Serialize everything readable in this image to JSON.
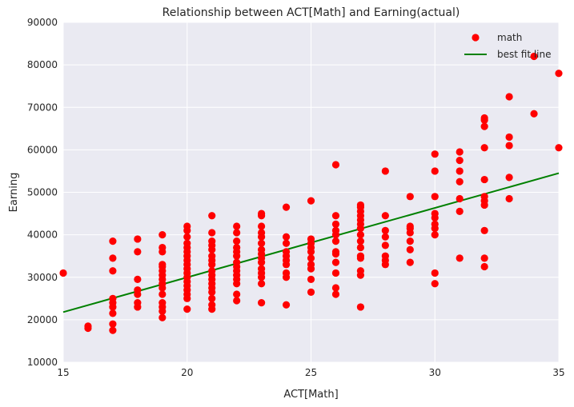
{
  "chart_data": {
    "type": "scatter",
    "title": "Relationship between ACT[Math] and Earning(actual)",
    "xlabel": "ACT[Math]",
    "ylabel": "Earning",
    "xlim": [
      15,
      35
    ],
    "ylim": [
      10000,
      90000
    ],
    "xticks": [
      15,
      20,
      25,
      30,
      35
    ],
    "yticks": [
      10000,
      20000,
      30000,
      40000,
      50000,
      60000,
      70000,
      80000,
      90000
    ],
    "grid": true,
    "legend_position": "top-right",
    "colors": {
      "points": "#ff0000",
      "line": "#008000",
      "background": "#eaeaf2",
      "grid": "#ffffff"
    },
    "series": [
      {
        "name": "math",
        "kind": "scatter",
        "points": [
          [
            15,
            31000
          ],
          [
            16,
            18000
          ],
          [
            16,
            18500
          ],
          [
            17,
            17500
          ],
          [
            17,
            19000
          ],
          [
            17,
            21500
          ],
          [
            17,
            23000
          ],
          [
            17,
            24000
          ],
          [
            17,
            25000
          ],
          [
            17,
            31500
          ],
          [
            17,
            34500
          ],
          [
            17,
            38500
          ],
          [
            18,
            23000
          ],
          [
            18,
            24000
          ],
          [
            18,
            26000
          ],
          [
            18,
            27000
          ],
          [
            18,
            29500
          ],
          [
            18,
            36000
          ],
          [
            18,
            39000
          ],
          [
            19,
            20500
          ],
          [
            19,
            22000
          ],
          [
            19,
            23000
          ],
          [
            19,
            24000
          ],
          [
            19,
            26000
          ],
          [
            19,
            27500
          ],
          [
            19,
            28500
          ],
          [
            19,
            29500
          ],
          [
            19,
            30500
          ],
          [
            19,
            31500
          ],
          [
            19,
            32500
          ],
          [
            19,
            33000
          ],
          [
            19,
            36000
          ],
          [
            19,
            37000
          ],
          [
            19,
            40000
          ],
          [
            20,
            22500
          ],
          [
            20,
            25000
          ],
          [
            20,
            26000
          ],
          [
            20,
            27000
          ],
          [
            20,
            28000
          ],
          [
            20,
            29000
          ],
          [
            20,
            30000
          ],
          [
            20,
            31000
          ],
          [
            20,
            32000
          ],
          [
            20,
            33000
          ],
          [
            20,
            34000
          ],
          [
            20,
            35000
          ],
          [
            20,
            36000
          ],
          [
            20,
            37000
          ],
          [
            20,
            38000
          ],
          [
            20,
            39500
          ],
          [
            20,
            41000
          ],
          [
            20,
            42000
          ],
          [
            21,
            22500
          ],
          [
            21,
            23500
          ],
          [
            21,
            25000
          ],
          [
            21,
            26500
          ],
          [
            21,
            27500
          ],
          [
            21,
            28500
          ],
          [
            21,
            29500
          ],
          [
            21,
            30500
          ],
          [
            21,
            31500
          ],
          [
            21,
            33000
          ],
          [
            21,
            34000
          ],
          [
            21,
            35000
          ],
          [
            21,
            36500
          ],
          [
            21,
            37500
          ],
          [
            21,
            38500
          ],
          [
            21,
            40500
          ],
          [
            21,
            44500
          ],
          [
            22,
            24500
          ],
          [
            22,
            26000
          ],
          [
            22,
            28500
          ],
          [
            22,
            29500
          ],
          [
            22,
            30500
          ],
          [
            22,
            31500
          ],
          [
            22,
            32500
          ],
          [
            22,
            33500
          ],
          [
            22,
            35000
          ],
          [
            22,
            36000
          ],
          [
            22,
            37000
          ],
          [
            22,
            38500
          ],
          [
            22,
            40500
          ],
          [
            22,
            42000
          ],
          [
            23,
            24000
          ],
          [
            23,
            28500
          ],
          [
            23,
            30000
          ],
          [
            23,
            31000
          ],
          [
            23,
            32000
          ],
          [
            23,
            33500
          ],
          [
            23,
            34500
          ],
          [
            23,
            35500
          ],
          [
            23,
            36500
          ],
          [
            23,
            38000
          ],
          [
            23,
            39500
          ],
          [
            23,
            40500
          ],
          [
            23,
            42000
          ],
          [
            23,
            44500
          ],
          [
            23,
            45000
          ],
          [
            24,
            23500
          ],
          [
            24,
            30000
          ],
          [
            24,
            31000
          ],
          [
            24,
            33000
          ],
          [
            24,
            34000
          ],
          [
            24,
            35000
          ],
          [
            24,
            36000
          ],
          [
            24,
            38000
          ],
          [
            24,
            39500
          ],
          [
            24,
            46500
          ],
          [
            25,
            26500
          ],
          [
            25,
            29500
          ],
          [
            25,
            32000
          ],
          [
            25,
            33000
          ],
          [
            25,
            34500
          ],
          [
            25,
            36000
          ],
          [
            25,
            37000
          ],
          [
            25,
            38000
          ],
          [
            25,
            39000
          ],
          [
            25,
            48000
          ],
          [
            26,
            26000
          ],
          [
            26,
            27500
          ],
          [
            26,
            31000
          ],
          [
            26,
            33500
          ],
          [
            26,
            35500
          ],
          [
            26,
            36000
          ],
          [
            26,
            38500
          ],
          [
            26,
            40000
          ],
          [
            26,
            41000
          ],
          [
            26,
            42500
          ],
          [
            26,
            44500
          ],
          [
            26,
            56500
          ],
          [
            27,
            23000
          ],
          [
            27,
            30500
          ],
          [
            27,
            31500
          ],
          [
            27,
            34500
          ],
          [
            27,
            35000
          ],
          [
            27,
            37000
          ],
          [
            27,
            38500
          ],
          [
            27,
            40000
          ],
          [
            27,
            41500
          ],
          [
            27,
            42500
          ],
          [
            27,
            43500
          ],
          [
            27,
            44500
          ],
          [
            27,
            45500
          ],
          [
            27,
            46500
          ],
          [
            27,
            47000
          ],
          [
            28,
            33000
          ],
          [
            28,
            34000
          ],
          [
            28,
            35000
          ],
          [
            28,
            37500
          ],
          [
            28,
            39500
          ],
          [
            28,
            41000
          ],
          [
            28,
            44500
          ],
          [
            28,
            55000
          ],
          [
            29,
            33500
          ],
          [
            29,
            36500
          ],
          [
            29,
            38500
          ],
          [
            29,
            40500
          ],
          [
            29,
            41500
          ],
          [
            29,
            42000
          ],
          [
            29,
            49000
          ],
          [
            30,
            28500
          ],
          [
            30,
            31000
          ],
          [
            30,
            40000
          ],
          [
            30,
            41500
          ],
          [
            30,
            42500
          ],
          [
            30,
            44000
          ],
          [
            30,
            45000
          ],
          [
            30,
            49000
          ],
          [
            30,
            55000
          ],
          [
            30,
            59000
          ],
          [
            31,
            34500
          ],
          [
            31,
            45500
          ],
          [
            31,
            48500
          ],
          [
            31,
            52500
          ],
          [
            31,
            55000
          ],
          [
            31,
            57500
          ],
          [
            31,
            59500
          ],
          [
            32,
            32500
          ],
          [
            32,
            34500
          ],
          [
            32,
            41000
          ],
          [
            32,
            47000
          ],
          [
            32,
            48000
          ],
          [
            32,
            49000
          ],
          [
            32,
            53000
          ],
          [
            32,
            60500
          ],
          [
            32,
            65500
          ],
          [
            32,
            67000
          ],
          [
            32,
            67500
          ],
          [
            33,
            48500
          ],
          [
            33,
            53500
          ],
          [
            33,
            61000
          ],
          [
            33,
            63000
          ],
          [
            33,
            72500
          ],
          [
            34,
            68500
          ],
          [
            34,
            82000
          ],
          [
            35,
            60500
          ],
          [
            35,
            78000
          ]
        ]
      },
      {
        "name": "best fit line",
        "kind": "line",
        "x": [
          15,
          35
        ],
        "y": [
          21800,
          54500
        ]
      }
    ]
  }
}
